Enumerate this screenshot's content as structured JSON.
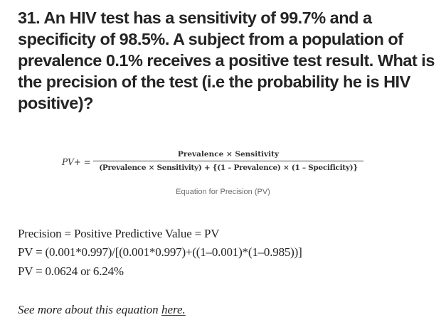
{
  "question": {
    "text": "31. An HIV test has a sensitivity of 99.7% and a specificity of 98.5%. A subject from a population of prevalence 0.1% receives a positive test result. What is the precision of the test (i.e the probability he is HIV positive)?"
  },
  "formula": {
    "lhs": "PV+ =",
    "numerator": "Prevalence × Sensitivity",
    "denominator": "(Prevalence × Sensitivity) + {(1 – Prevalence) × (1 – Specificity)}",
    "caption": "Equation for Precision (PV)"
  },
  "calculation": {
    "line1": "Precision = Positive Predictive Value = PV",
    "line2": "PV = (0.001*0.997)/[(0.001*0.997)+((1–0.001)*(1–0.985))]",
    "line3": "PV = 0.0624 or 6.24%"
  },
  "footer": {
    "prefix": "See more about this equation ",
    "link_text": "here."
  }
}
